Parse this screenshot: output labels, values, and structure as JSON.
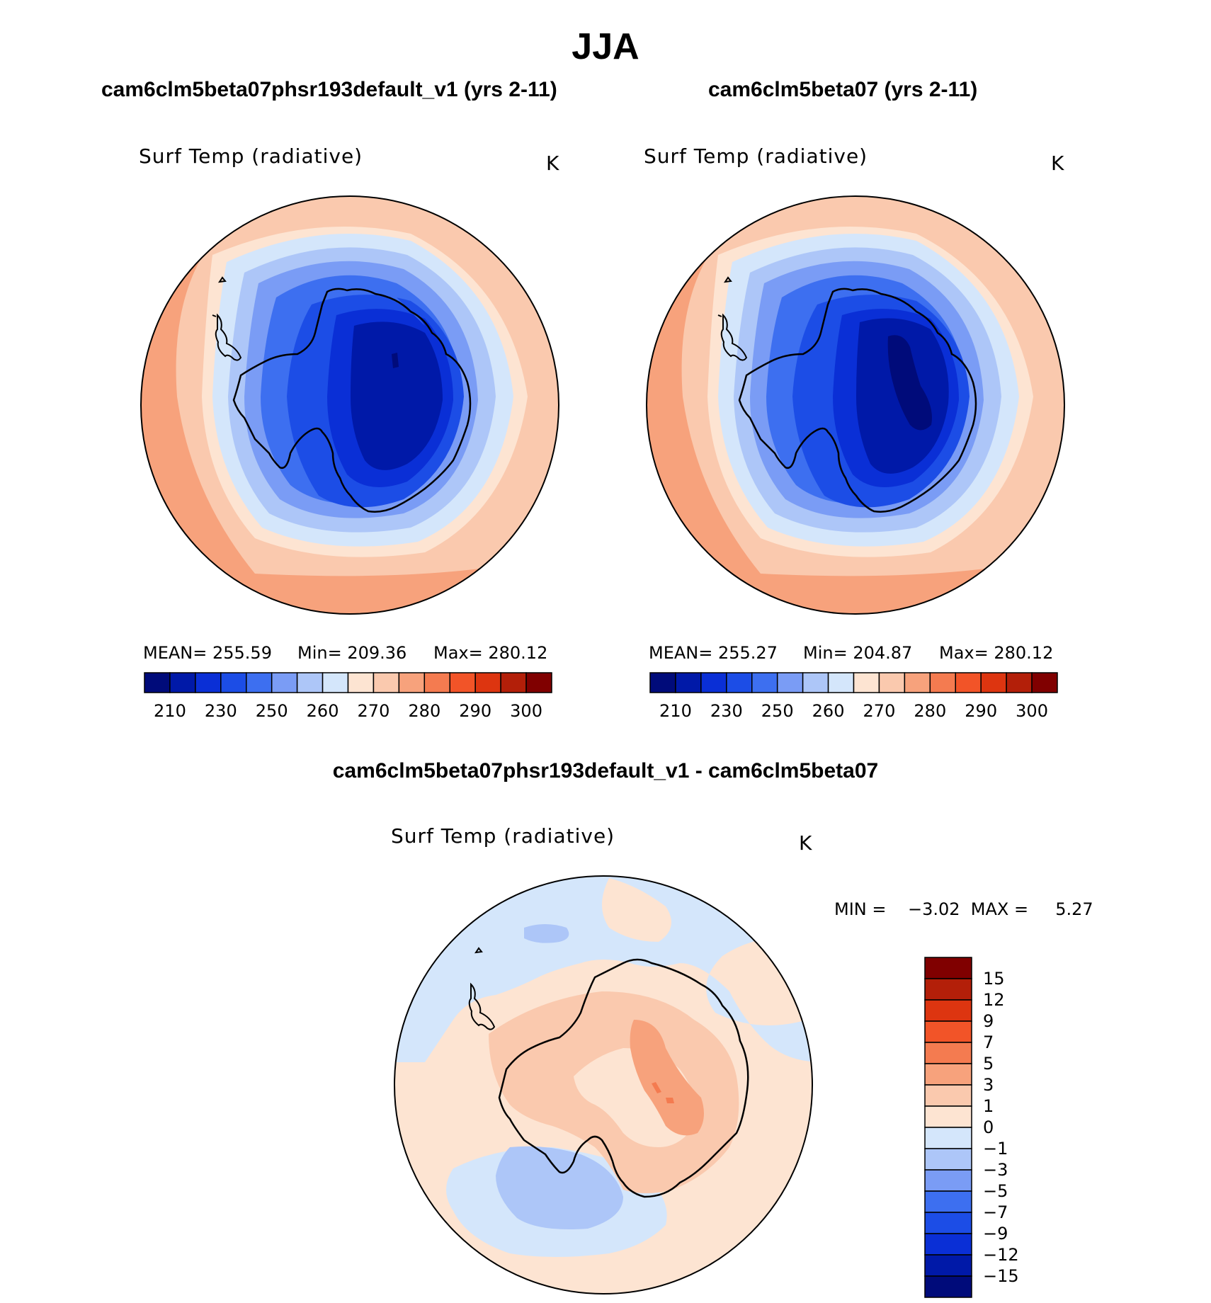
{
  "figure": {
    "season": "JJA",
    "panel1": {
      "case": "cam6clm5beta07phsr193default_v1 (yrs 2-11)",
      "variable": "Surf Temp (radiative)",
      "units": "K",
      "stats": {
        "mean_text": "MEAN=  255.59",
        "min_text": "Min=  209.36",
        "max_text": "Max=  280.12"
      }
    },
    "panel2": {
      "case": "cam6clm5beta07 (yrs 2-11)",
      "variable": "Surf Temp (radiative)",
      "units": "K",
      "stats": {
        "mean_text": "MEAN=  255.27",
        "min_text": "Min=  204.87",
        "max_text": "Max=  280.12"
      }
    },
    "diff": {
      "title": "cam6clm5beta07phsr193default_v1 - cam6clm5beta07",
      "variable": "Surf Temp (radiative)",
      "units": "K",
      "minmax_text": "MIN =    −3.02  MAX =     5.27"
    }
  },
  "chart_data": [
    {
      "type": "heatmap",
      "title": "cam6clm5beta07phsr193default_v1 (yrs 2-11)",
      "projection": "south polar stereographic",
      "mean": 255.59,
      "min": 209.36,
      "max": 280.12,
      "contour_levels": [
        210,
        220,
        230,
        240,
        250,
        255,
        260,
        265,
        270,
        275,
        280,
        285,
        290,
        295,
        300
      ],
      "colorbar_ticks": [
        "210",
        "230",
        "250",
        "260",
        "270",
        "280",
        "290",
        "300"
      ]
    },
    {
      "type": "heatmap",
      "title": "cam6clm5beta07 (yrs 2-11)",
      "projection": "south polar stereographic",
      "mean": 255.27,
      "min": 204.87,
      "max": 280.12,
      "contour_levels": [
        210,
        220,
        230,
        240,
        250,
        255,
        260,
        265,
        270,
        275,
        280,
        285,
        290,
        295,
        300
      ],
      "colorbar_ticks": [
        "210",
        "230",
        "250",
        "260",
        "270",
        "280",
        "290",
        "300"
      ]
    },
    {
      "type": "heatmap",
      "title": "cam6clm5beta07phsr193default_v1 - cam6clm5beta07",
      "projection": "south polar stereographic",
      "min": -3.02,
      "max": 5.27,
      "contour_levels": [
        -15,
        -12,
        -9,
        -7,
        -5,
        -3,
        -1,
        0,
        1,
        3,
        5,
        7,
        9,
        12,
        15
      ],
      "colorbar_ticks": [
        "15",
        "12",
        "9",
        "7",
        "5",
        "3",
        "1",
        "0",
        "−1",
        "−3",
        "−5",
        "−7",
        "−9",
        "−12",
        "−15"
      ]
    }
  ],
  "palette": [
    "#000b7a",
    "#0019a8",
    "#0a2fd6",
    "#1c4de6",
    "#3d6ff0",
    "#7a9cf5",
    "#adc6f8",
    "#d4e6fb",
    "#fde4d2",
    "#fac9ae",
    "#f7a27c",
    "#f47b50",
    "#f25428",
    "#dd3510",
    "#b31f09",
    "#800000"
  ]
}
